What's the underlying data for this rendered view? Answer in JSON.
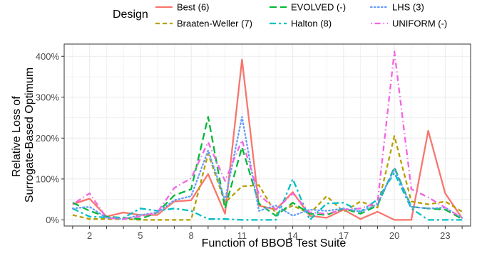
{
  "chart_data": {
    "type": "line",
    "xlabel": "Function of BBOB Test Suite",
    "ylabel": [
      "Relative Loss of",
      "Surrogate-Based Optimum"
    ],
    "x": [
      1,
      2,
      3,
      4,
      5,
      6,
      7,
      8,
      9,
      10,
      11,
      12,
      13,
      14,
      15,
      16,
      17,
      18,
      19,
      20,
      21,
      22,
      23,
      24
    ],
    "xtick_values": [
      2,
      5,
      8,
      11,
      14,
      17,
      20,
      23
    ],
    "xlim": [
      0.5,
      24.5
    ],
    "ytick_values": [
      0,
      100,
      200,
      300,
      400
    ],
    "ytick_labels": [
      "0%",
      "100%",
      "200%",
      "300%",
      "400%"
    ],
    "ylim": [
      -15,
      430
    ],
    "grid": true,
    "legend": {
      "title": "Design",
      "placement": "top"
    },
    "series": [
      {
        "name": "Best (6)",
        "color": "#F8766D",
        "dash": "solid",
        "values": [
          38,
          52,
          8,
          18,
          12,
          12,
          45,
          48,
          112,
          15,
          392,
          35,
          25,
          68,
          10,
          5,
          25,
          2,
          20,
          0,
          0,
          218,
          65,
          4
        ]
      },
      {
        "name": "Braaten-Weller (7)",
        "color": "#B79F00",
        "dash": "dashed",
        "values": [
          12,
          2,
          2,
          2,
          0,
          0,
          0,
          0,
          162,
          42,
          82,
          85,
          15,
          35,
          15,
          58,
          20,
          45,
          30,
          205,
          45,
          38,
          45,
          20
        ]
      },
      {
        "name": "EVOLVED (-)",
        "color": "#00BA38",
        "dash": "longdash",
        "values": [
          42,
          22,
          8,
          5,
          2,
          18,
          60,
          75,
          252,
          28,
          178,
          40,
          10,
          42,
          15,
          12,
          28,
          15,
          35,
          128,
          32,
          28,
          25,
          2
        ]
      },
      {
        "name": "Halton (8)",
        "color": "#00BFC4",
        "dash": "twodash",
        "values": [
          28,
          8,
          6,
          5,
          28,
          22,
          28,
          22,
          2,
          2,
          0,
          0,
          0,
          100,
          0,
          40,
          42,
          20,
          50,
          115,
          28,
          0,
          0,
          0
        ]
      },
      {
        "name": "LHS (3)",
        "color": "#619CFF",
        "dash": "dotted",
        "values": [
          28,
          32,
          5,
          2,
          12,
          18,
          48,
          58,
          170,
          48,
          252,
          22,
          35,
          10,
          25,
          22,
          28,
          20,
          38,
          125,
          32,
          28,
          30,
          5
        ]
      },
      {
        "name": "UNIFORM (-)",
        "color": "#F564E3",
        "dash": "dotdash",
        "values": [
          38,
          65,
          5,
          2,
          8,
          18,
          78,
          102,
          190,
          95,
          195,
          62,
          25,
          65,
          18,
          15,
          25,
          28,
          42,
          412,
          75,
          55,
          30,
          5
        ]
      }
    ]
  }
}
